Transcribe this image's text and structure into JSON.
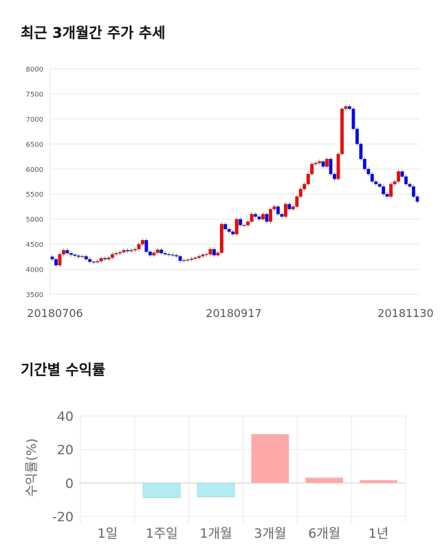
{
  "sections": {
    "price_title": "최근 3개월간 주가 추세",
    "return_title": "기간별 수익률"
  },
  "chart_data": [
    {
      "type": "candlestick",
      "ylim": [
        3500,
        8000
      ],
      "yticks": [
        3500,
        4000,
        4500,
        5000,
        5500,
        6000,
        6500,
        7000,
        7500,
        8000
      ],
      "xticks": [
        "20180706",
        "20180917",
        "20181130"
      ],
      "grid": true,
      "up_color": "#ff0000",
      "down_color": "#0000ff",
      "first_open": 4250,
      "close": [
        4200,
        4080,
        4300,
        4380,
        4320,
        4290,
        4270,
        4250,
        4260,
        4200,
        4150,
        4140,
        4160,
        4220,
        4200,
        4230,
        4300,
        4320,
        4340,
        4380,
        4360,
        4380,
        4400,
        4500,
        4580,
        4350,
        4280,
        4330,
        4390,
        4320,
        4300,
        4290,
        4280,
        4260,
        4170,
        4180,
        4190,
        4210,
        4230,
        4260,
        4290,
        4300,
        4400,
        4280,
        4330,
        4900,
        4800,
        4750,
        4700,
        5000,
        4880,
        4880,
        4950,
        5100,
        5050,
        5000,
        5100,
        4950,
        5200,
        5250,
        5100,
        5050,
        5300,
        5200,
        5250,
        5450,
        5600,
        5700,
        5900,
        6100,
        6120,
        6150,
        6050,
        6200,
        5900,
        5800,
        6300,
        7200,
        7250,
        7200,
        6800,
        6500,
        6200,
        6000,
        5900,
        5750,
        5700,
        5650,
        5500,
        5450,
        5700,
        5750,
        5950,
        5850,
        5700,
        5650,
        5450,
        5350
      ]
    },
    {
      "type": "bar",
      "categories": [
        "1일",
        "1주일",
        "1개월",
        "3개월",
        "6개월",
        "1년"
      ],
      "values": [
        0,
        -8.8,
        -8.3,
        29,
        3,
        1.5
      ],
      "ylabel": "수익률(%)",
      "ylim": [
        -20,
        40
      ],
      "yticks": [
        -20,
        0,
        20,
        40
      ],
      "grid": true,
      "positive_color": "#ffa8a8",
      "negative_color": "#b3ebf2"
    }
  ]
}
